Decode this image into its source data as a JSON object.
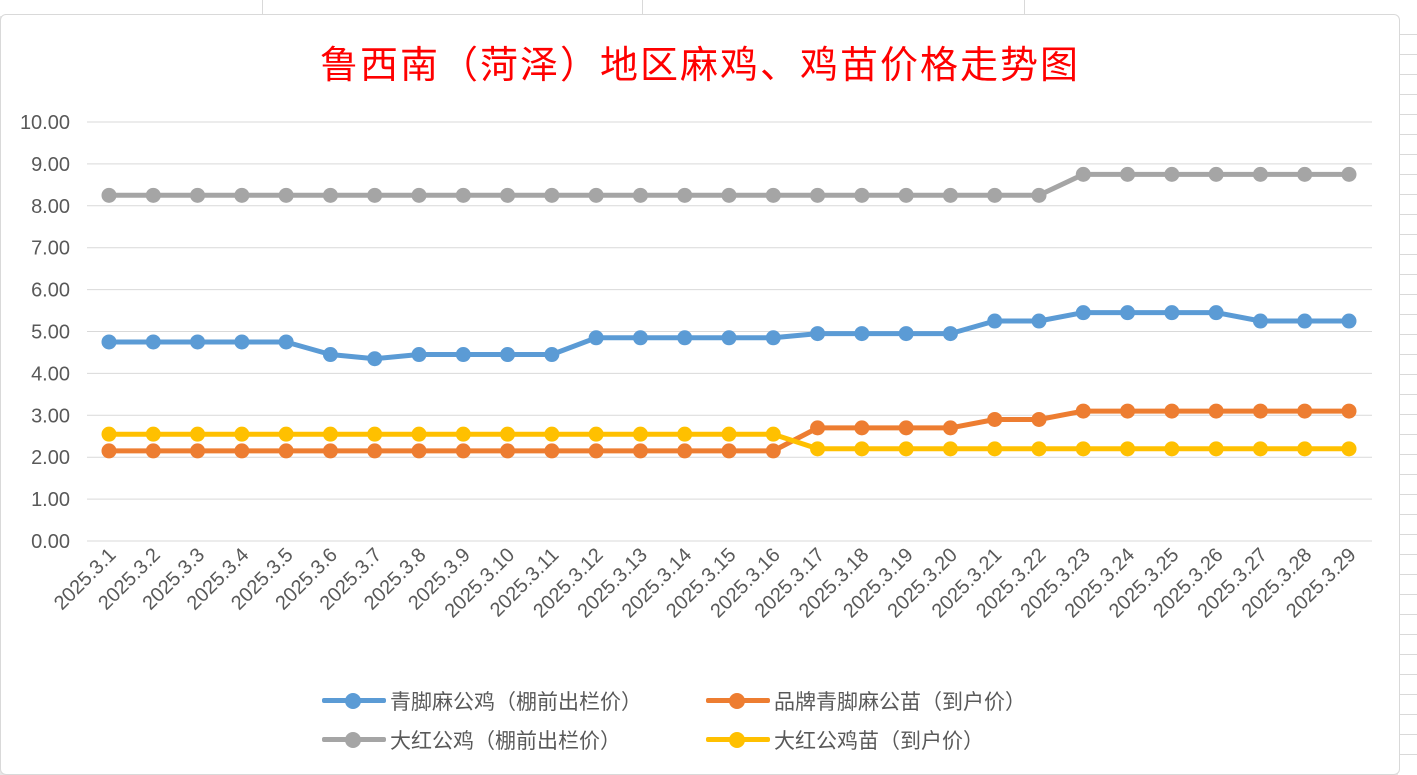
{
  "chart_data": {
    "type": "line",
    "title": "鲁西南（菏泽）地区麻鸡、鸡苗价格走势图",
    "categories": [
      "2025.3.1",
      "2025.3.2",
      "2025.3.3",
      "2025.3.4",
      "2025.3.5",
      "2025.3.6",
      "2025.3.7",
      "2025.3.8",
      "2025.3.9",
      "2025.3.10",
      "2025.3.11",
      "2025.3.12",
      "2025.3.13",
      "2025.3.14",
      "2025.3.15",
      "2025.3.16",
      "2025.3.17",
      "2025.3.18",
      "2025.3.19",
      "2025.3.20",
      "2025.3.21",
      "2025.3.22",
      "2025.3.23",
      "2025.3.24",
      "2025.3.25",
      "2025.3.26",
      "2025.3.27",
      "2025.3.28",
      "2025.3.29"
    ],
    "y_ticks": [
      "0.00",
      "1.00",
      "2.00",
      "3.00",
      "4.00",
      "5.00",
      "6.00",
      "7.00",
      "8.00",
      "9.00",
      "10.00"
    ],
    "ylim": [
      0,
      10
    ],
    "grid": true,
    "legend_position": "bottom",
    "series": [
      {
        "name": "青脚麻公鸡（棚前出栏价）",
        "color": "#5b9bd5",
        "values": [
          4.75,
          4.75,
          4.75,
          4.75,
          4.75,
          4.45,
          4.35,
          4.45,
          4.45,
          4.45,
          4.45,
          4.85,
          4.85,
          4.85,
          4.85,
          4.85,
          4.95,
          4.95,
          4.95,
          4.95,
          5.25,
          5.25,
          5.45,
          5.45,
          5.45,
          5.45,
          5.25,
          5.25,
          5.25
        ]
      },
      {
        "name": "品牌青脚麻公苗（到户价）",
        "color": "#ed7d31",
        "values": [
          2.15,
          2.15,
          2.15,
          2.15,
          2.15,
          2.15,
          2.15,
          2.15,
          2.15,
          2.15,
          2.15,
          2.15,
          2.15,
          2.15,
          2.15,
          2.15,
          2.7,
          2.7,
          2.7,
          2.7,
          2.9,
          2.9,
          3.1,
          3.1,
          3.1,
          3.1,
          3.1,
          3.1,
          3.1
        ]
      },
      {
        "name": "大红公鸡（棚前出栏价）",
        "color": "#a5a5a5",
        "values": [
          8.25,
          8.25,
          8.25,
          8.25,
          8.25,
          8.25,
          8.25,
          8.25,
          8.25,
          8.25,
          8.25,
          8.25,
          8.25,
          8.25,
          8.25,
          8.25,
          8.25,
          8.25,
          8.25,
          8.25,
          8.25,
          8.25,
          8.75,
          8.75,
          8.75,
          8.75,
          8.75,
          8.75,
          8.75
        ]
      },
      {
        "name": "大红公鸡苗（到户价）",
        "color": "#ffc000",
        "values": [
          2.55,
          2.55,
          2.55,
          2.55,
          2.55,
          2.55,
          2.55,
          2.55,
          2.55,
          2.55,
          2.55,
          2.55,
          2.55,
          2.55,
          2.55,
          2.55,
          2.2,
          2.2,
          2.2,
          2.2,
          2.2,
          2.2,
          2.2,
          2.2,
          2.2,
          2.2,
          2.2,
          2.2,
          2.2
        ]
      }
    ]
  }
}
